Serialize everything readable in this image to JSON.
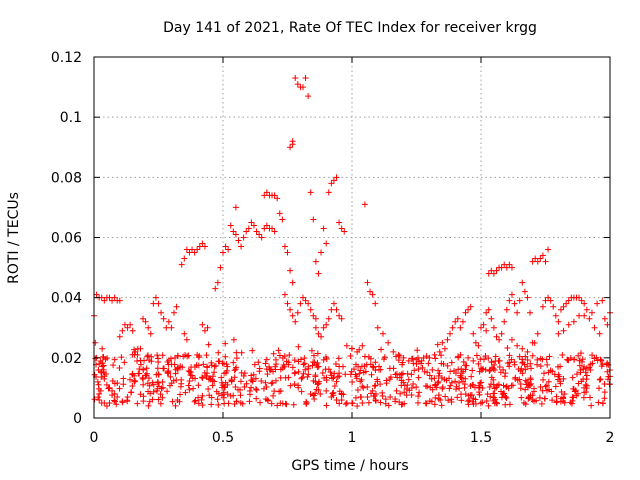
{
  "chart_data": {
    "type": "scatter",
    "title": "Day 141 of 2021, Rate Of TEC Index for receiver krgg",
    "xlabel": "GPS time / hours",
    "ylabel": "ROTI / TECUs",
    "xlim": [
      0,
      2
    ],
    "ylim": [
      0,
      0.12
    ],
    "xticks": [
      "0",
      "0.5",
      "1",
      "1.5",
      "2"
    ],
    "yticks": [
      "0",
      "0.02",
      "0.04",
      "0.06",
      "0.08",
      "0.1",
      "0.12"
    ],
    "grid": true,
    "marker": "plus",
    "color": "#ff0000",
    "series": [
      {
        "name": "",
        "points": [
          [
            0.0,
            0.034
          ],
          [
            0.005,
            0.025
          ],
          [
            0.01,
            0.02
          ],
          [
            0.015,
            0.012
          ],
          [
            0.02,
            0.008
          ],
          [
            0.01,
            0.041
          ],
          [
            0.02,
            0.04
          ],
          [
            0.03,
            0.04
          ],
          [
            0.04,
            0.039
          ],
          [
            0.05,
            0.04
          ],
          [
            0.06,
            0.04
          ],
          [
            0.07,
            0.039
          ],
          [
            0.08,
            0.04
          ],
          [
            0.09,
            0.039
          ],
          [
            0.1,
            0.039
          ],
          [
            0.02,
            0.018
          ],
          [
            0.03,
            0.015
          ],
          [
            0.04,
            0.013
          ],
          [
            0.05,
            0.011
          ],
          [
            0.06,
            0.01
          ],
          [
            0.07,
            0.009
          ],
          [
            0.08,
            0.008
          ],
          [
            0.09,
            0.007
          ],
          [
            0.02,
            0.006
          ],
          [
            0.03,
            0.005
          ],
          [
            0.04,
            0.005
          ],
          [
            0.05,
            0.004
          ],
          [
            0.06,
            0.005
          ],
          [
            0.1,
            0.027
          ],
          [
            0.11,
            0.029
          ],
          [
            0.12,
            0.031
          ],
          [
            0.13,
            0.03
          ],
          [
            0.14,
            0.031
          ],
          [
            0.15,
            0.029
          ],
          [
            0.16,
            0.022
          ],
          [
            0.17,
            0.023
          ],
          [
            0.18,
            0.023
          ],
          [
            0.19,
            0.033
          ],
          [
            0.2,
            0.032
          ],
          [
            0.21,
            0.03
          ],
          [
            0.22,
            0.028
          ],
          [
            0.23,
            0.038
          ],
          [
            0.24,
            0.04
          ],
          [
            0.25,
            0.038
          ],
          [
            0.26,
            0.035
          ],
          [
            0.27,
            0.033
          ],
          [
            0.28,
            0.03
          ],
          [
            0.29,
            0.032
          ],
          [
            0.3,
            0.03
          ],
          [
            0.31,
            0.035
          ],
          [
            0.32,
            0.037
          ],
          [
            0.34,
            0.051
          ],
          [
            0.35,
            0.053
          ],
          [
            0.36,
            0.056
          ],
          [
            0.37,
            0.055
          ],
          [
            0.38,
            0.056
          ],
          [
            0.39,
            0.055
          ],
          [
            0.4,
            0.056
          ],
          [
            0.41,
            0.057
          ],
          [
            0.42,
            0.058
          ],
          [
            0.43,
            0.057
          ],
          [
            0.35,
            0.028
          ],
          [
            0.36,
            0.026
          ],
          [
            0.4,
            0.021
          ],
          [
            0.42,
            0.031
          ],
          [
            0.43,
            0.029
          ],
          [
            0.44,
            0.03
          ],
          [
            0.47,
            0.043
          ],
          [
            0.48,
            0.045
          ],
          [
            0.49,
            0.05
          ],
          [
            0.5,
            0.055
          ],
          [
            0.51,
            0.057
          ],
          [
            0.52,
            0.056
          ],
          [
            0.53,
            0.064
          ],
          [
            0.54,
            0.062
          ],
          [
            0.55,
            0.061
          ],
          [
            0.56,
            0.059
          ],
          [
            0.57,
            0.057
          ],
          [
            0.55,
            0.07
          ],
          [
            0.58,
            0.06
          ],
          [
            0.59,
            0.062
          ],
          [
            0.6,
            0.063
          ],
          [
            0.61,
            0.065
          ],
          [
            0.62,
            0.064
          ],
          [
            0.63,
            0.062
          ],
          [
            0.64,
            0.061
          ],
          [
            0.65,
            0.06
          ],
          [
            0.66,
            0.063
          ],
          [
            0.67,
            0.064
          ],
          [
            0.68,
            0.063
          ],
          [
            0.69,
            0.063
          ],
          [
            0.7,
            0.062
          ],
          [
            0.66,
            0.074
          ],
          [
            0.67,
            0.075
          ],
          [
            0.68,
            0.074
          ],
          [
            0.69,
            0.074
          ],
          [
            0.7,
            0.074
          ],
          [
            0.71,
            0.073
          ],
          [
            0.72,
            0.068
          ],
          [
            0.73,
            0.066
          ],
          [
            0.74,
            0.057
          ],
          [
            0.75,
            0.055
          ],
          [
            0.76,
            0.049
          ],
          [
            0.77,
            0.045
          ],
          [
            0.74,
            0.041
          ],
          [
            0.75,
            0.038
          ],
          [
            0.76,
            0.036
          ],
          [
            0.77,
            0.034
          ],
          [
            0.78,
            0.032
          ],
          [
            0.76,
            0.09
          ],
          [
            0.77,
            0.091
          ],
          [
            0.77,
            0.092
          ],
          [
            0.78,
            0.113
          ],
          [
            0.79,
            0.111
          ],
          [
            0.8,
            0.11
          ],
          [
            0.81,
            0.11
          ],
          [
            0.82,
            0.113
          ],
          [
            0.83,
            0.107
          ],
          [
            0.79,
            0.035
          ],
          [
            0.8,
            0.038
          ],
          [
            0.81,
            0.04
          ],
          [
            0.82,
            0.039
          ],
          [
            0.83,
            0.038
          ],
          [
            0.84,
            0.036
          ],
          [
            0.85,
            0.034
          ],
          [
            0.86,
            0.033
          ],
          [
            0.84,
            0.075
          ],
          [
            0.85,
            0.066
          ],
          [
            0.86,
            0.052
          ],
          [
            0.87,
            0.048
          ],
          [
            0.88,
            0.055
          ],
          [
            0.89,
            0.063
          ],
          [
            0.9,
            0.058
          ],
          [
            0.91,
            0.075
          ],
          [
            0.92,
            0.078
          ],
          [
            0.93,
            0.079
          ],
          [
            0.94,
            0.08
          ],
          [
            0.95,
            0.065
          ],
          [
            0.96,
            0.063
          ],
          [
            0.97,
            0.062
          ],
          [
            0.86,
            0.03
          ],
          [
            0.87,
            0.028
          ],
          [
            0.88,
            0.027
          ],
          [
            0.89,
            0.03
          ],
          [
            0.9,
            0.031
          ],
          [
            0.91,
            0.033
          ],
          [
            0.92,
            0.036
          ],
          [
            0.93,
            0.038
          ],
          [
            0.94,
            0.036
          ],
          [
            0.95,
            0.034
          ],
          [
            0.96,
            0.033
          ],
          [
            0.98,
            0.024
          ],
          [
            1.0,
            0.023
          ],
          [
            1.02,
            0.022
          ],
          [
            1.04,
            0.024
          ],
          [
            1.05,
            0.071
          ],
          [
            1.06,
            0.045
          ],
          [
            1.07,
            0.042
          ],
          [
            1.08,
            0.041
          ],
          [
            1.09,
            0.038
          ],
          [
            1.1,
            0.03
          ],
          [
            1.12,
            0.028
          ],
          [
            1.14,
            0.025
          ],
          [
            1.35,
            0.025
          ],
          [
            1.36,
            0.023
          ],
          [
            1.37,
            0.026
          ],
          [
            1.38,
            0.028
          ],
          [
            1.39,
            0.03
          ],
          [
            1.4,
            0.032
          ],
          [
            1.41,
            0.033
          ],
          [
            1.42,
            0.03
          ],
          [
            1.43,
            0.032
          ],
          [
            1.44,
            0.035
          ],
          [
            1.45,
            0.036
          ],
          [
            1.46,
            0.037
          ],
          [
            1.47,
            0.028
          ],
          [
            1.48,
            0.025
          ],
          [
            1.49,
            0.024
          ],
          [
            1.53,
            0.048
          ],
          [
            1.54,
            0.049
          ],
          [
            1.55,
            0.048
          ],
          [
            1.56,
            0.049
          ],
          [
            1.57,
            0.05
          ],
          [
            1.58,
            0.05
          ],
          [
            1.59,
            0.051
          ],
          [
            1.6,
            0.05
          ],
          [
            1.61,
            0.051
          ],
          [
            1.62,
            0.05
          ],
          [
            1.52,
            0.035
          ],
          [
            1.53,
            0.036
          ],
          [
            1.54,
            0.033
          ],
          [
            1.55,
            0.03
          ],
          [
            1.56,
            0.027
          ],
          [
            1.57,
            0.026
          ],
          [
            1.58,
            0.028
          ],
          [
            1.59,
            0.032
          ],
          [
            1.6,
            0.036
          ],
          [
            1.61,
            0.039
          ],
          [
            1.62,
            0.041
          ],
          [
            1.63,
            0.038
          ],
          [
            1.64,
            0.035
          ],
          [
            1.65,
            0.039
          ],
          [
            1.66,
            0.045
          ],
          [
            1.67,
            0.042
          ],
          [
            1.68,
            0.04
          ],
          [
            1.69,
            0.035
          ],
          [
            1.7,
            0.052
          ],
          [
            1.71,
            0.053
          ],
          [
            1.72,
            0.052
          ],
          [
            1.73,
            0.053
          ],
          [
            1.74,
            0.054
          ],
          [
            1.75,
            0.052
          ],
          [
            1.76,
            0.056
          ],
          [
            1.74,
            0.037
          ],
          [
            1.75,
            0.039
          ],
          [
            1.76,
            0.04
          ],
          [
            1.77,
            0.039
          ],
          [
            1.78,
            0.037
          ],
          [
            1.79,
            0.034
          ],
          [
            1.8,
            0.032
          ],
          [
            1.81,
            0.036
          ],
          [
            1.82,
            0.037
          ],
          [
            1.83,
            0.038
          ],
          [
            1.84,
            0.039
          ],
          [
            1.85,
            0.04
          ],
          [
            1.86,
            0.04
          ],
          [
            1.87,
            0.04
          ],
          [
            1.88,
            0.04
          ],
          [
            1.89,
            0.039
          ],
          [
            1.9,
            0.038
          ],
          [
            1.91,
            0.036
          ],
          [
            1.8,
            0.028
          ],
          [
            1.82,
            0.029
          ],
          [
            1.84,
            0.031
          ],
          [
            1.86,
            0.032
          ],
          [
            1.88,
            0.034
          ],
          [
            1.9,
            0.034
          ],
          [
            1.92,
            0.033
          ],
          [
            1.94,
            0.03
          ],
          [
            1.96,
            0.028
          ],
          [
            1.98,
            0.033
          ],
          [
            1.93,
            0.035
          ],
          [
            1.95,
            0.038
          ],
          [
            1.97,
            0.039
          ],
          [
            1.99,
            0.031
          ],
          [
            2.0,
            0.035
          ],
          [
            1.62,
            0.026
          ],
          [
            1.64,
            0.024
          ],
          [
            1.66,
            0.023
          ],
          [
            1.68,
            0.022
          ],
          [
            1.7,
            0.025
          ],
          [
            1.72,
            0.028
          ],
          [
            1.5,
            0.03
          ],
          [
            1.51,
            0.031
          ],
          [
            1.52,
            0.029
          ],
          [
            1.3,
            0.02
          ],
          [
            1.32,
            0.021
          ],
          [
            1.34,
            0.022
          ],
          [
            1.27,
            0.019
          ],
          [
            1.25,
            0.018
          ],
          [
            1.16,
            0.022
          ],
          [
            1.18,
            0.021
          ],
          [
            1.2,
            0.02
          ],
          [
            1.22,
            0.019
          ],
          [
            0.9,
            0.009
          ],
          [
            0.92,
            0.007
          ],
          [
            0.94,
            0.006
          ],
          [
            0.96,
            0.006
          ],
          [
            0.98,
            0.005
          ],
          [
            1.0,
            0.005
          ],
          [
            1.02,
            0.004
          ],
          [
            1.04,
            0.005
          ],
          [
            1.06,
            0.007
          ],
          [
            1.08,
            0.009
          ],
          [
            1.45,
            0.02
          ],
          [
            1.47,
            0.019
          ],
          [
            1.49,
            0.018
          ]
        ]
      }
    ]
  }
}
